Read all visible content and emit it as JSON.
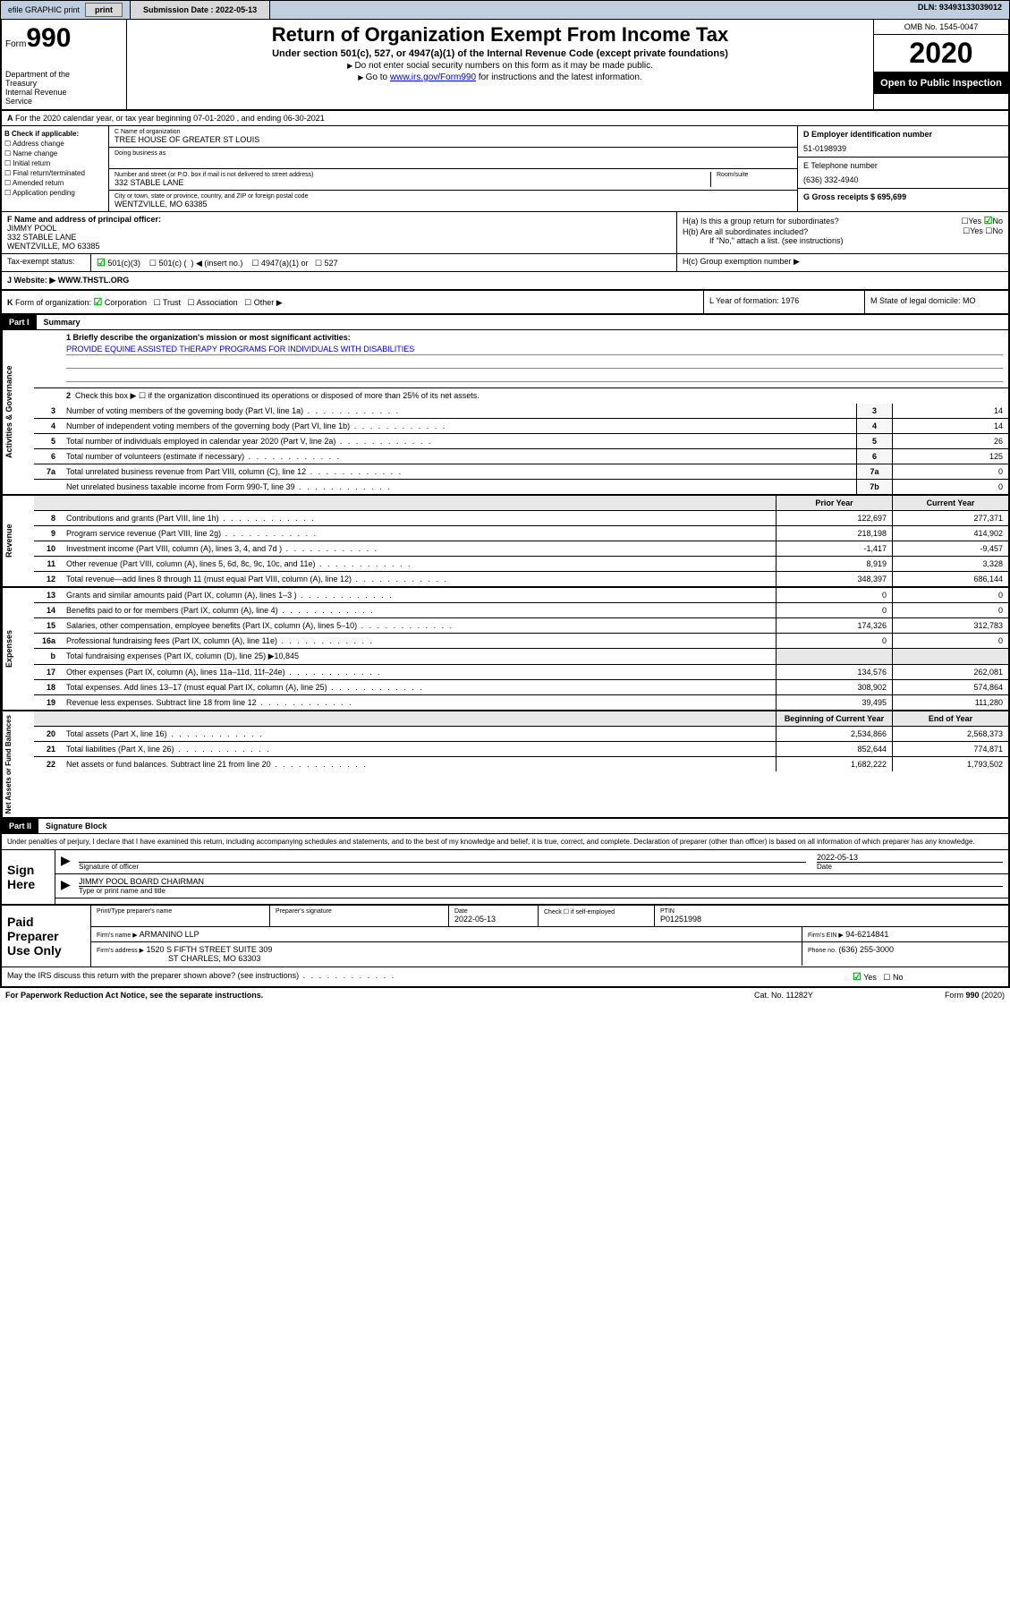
{
  "topbar": {
    "efile": "efile GRAPHIC print",
    "submission_label": "Submission Date : 2022-05-13",
    "dln": "DLN: 93493133039012"
  },
  "header": {
    "form_label": "Form",
    "form_number": "990",
    "dept": "Department of the Treasury\nInternal Revenue Service",
    "title": "Return of Organization Exempt From Income Tax",
    "subtitle": "Under section 501(c), 527, or 4947(a)(1) of the Internal Revenue Code (except private foundations)",
    "note1": "Do not enter social security numbers on this form as it may be made public.",
    "note2_pre": "Go to ",
    "note2_link": "www.irs.gov/Form990",
    "note2_post": " for instructions and the latest information.",
    "omb": "OMB No. 1545-0047",
    "year": "2020",
    "inspect": "Open to Public Inspection"
  },
  "row_a": "For the 2020 calendar year, or tax year beginning 07-01-2020   , and ending 06-30-2021",
  "col_b": {
    "label": "B Check if applicable:",
    "items": [
      "Address change",
      "Name change",
      "Initial return",
      "Final return/terminated",
      "Amended return",
      "Application pending"
    ]
  },
  "col_c": {
    "name_lbl": "C Name of organization",
    "name": "TREE HOUSE OF GREATER ST LOUIS",
    "dba_lbl": "Doing business as",
    "addr_lbl": "Number and street (or P.O. box if mail is not delivered to street address)",
    "room_lbl": "Room/suite",
    "addr": "332 STABLE LANE",
    "city_lbl": "City or town, state or province, country, and ZIP or foreign postal code",
    "city": "WENTZVILLE, MO  63385"
  },
  "col_d": {
    "ein_lbl": "D Employer identification number",
    "ein": "51-0198939",
    "phone_lbl": "E Telephone number",
    "phone": "(636) 332-4940",
    "gross_lbl": "G Gross receipts $ 695,699"
  },
  "col_f": {
    "lbl": "F Name and address of principal officer:",
    "name": "JIMMY POOL",
    "addr1": "332 STABLE LANE",
    "addr2": "WENTZVILLE, MO  63385"
  },
  "col_h": {
    "ha": "H(a)  Is this a group return for subordinates?",
    "hb": "H(b)  Are all subordinates included?",
    "hb_note": "If \"No,\" attach a list. (see instructions)",
    "hc": "H(c)  Group exemption number ▶"
  },
  "tax": {
    "lbl": "Tax-exempt status:",
    "opts": "501(c)(3)       501(c) (  ) ◀ (insert no.)       4947(a)(1) or       527"
  },
  "row_j": {
    "lbl": "J   Website: ▶",
    "val": "  WWW.THSTL.ORG"
  },
  "row_k": {
    "k": "K Form of organization:      Corporation      Trust      Association      Other ▶",
    "l": "L Year of formation: 1976",
    "m": "M State of legal domicile: MO"
  },
  "part1": {
    "hdr": "Part I",
    "title": "Summary",
    "side_ag": "Activities & Governance",
    "side_rev": "Revenue",
    "side_exp": "Expenses",
    "side_na": "Net Assets or Fund Balances",
    "l1_lbl": "1  Briefly describe the organization's mission or most significant activities:",
    "l1_val": "PROVIDE EQUINE ASSISTED THERAPY PROGRAMS FOR INDIVIDUALS WITH DISABILITIES",
    "l2": "Check this box ▶ ☐  if the organization discontinued its operations or disposed of more than 25% of its net assets.",
    "lines_single": [
      {
        "n": "3",
        "t": "Number of voting members of the governing body (Part VI, line 1a)",
        "b": "3",
        "v": "14"
      },
      {
        "n": "4",
        "t": "Number of independent voting members of the governing body (Part VI, line 1b)",
        "b": "4",
        "v": "14"
      },
      {
        "n": "5",
        "t": "Total number of individuals employed in calendar year 2020 (Part V, line 2a)",
        "b": "5",
        "v": "26"
      },
      {
        "n": "6",
        "t": "Total number of volunteers (estimate if necessary)",
        "b": "6",
        "v": "125"
      },
      {
        "n": "7a",
        "t": "Total unrelated business revenue from Part VIII, column (C), line 12",
        "b": "7a",
        "v": "0"
      },
      {
        "n": "",
        "t": "Net unrelated business taxable income from Form 990-T, line 39",
        "b": "7b",
        "v": "0"
      }
    ],
    "hdr_prior": "Prior Year",
    "hdr_curr": "Current Year",
    "rev": [
      {
        "n": "8",
        "t": "Contributions and grants (Part VIII, line 1h)",
        "p": "122,697",
        "c": "277,371"
      },
      {
        "n": "9",
        "t": "Program service revenue (Part VIII, line 2g)",
        "p": "218,198",
        "c": "414,902"
      },
      {
        "n": "10",
        "t": "Investment income (Part VIII, column (A), lines 3, 4, and 7d )",
        "p": "-1,417",
        "c": "-9,457"
      },
      {
        "n": "11",
        "t": "Other revenue (Part VIII, column (A), lines 5, 6d, 8c, 9c, 10c, and 11e)",
        "p": "8,919",
        "c": "3,328"
      },
      {
        "n": "12",
        "t": "Total revenue—add lines 8 through 11 (must equal Part VIII, column (A), line 12)",
        "p": "348,397",
        "c": "686,144"
      }
    ],
    "exp": [
      {
        "n": "13",
        "t": "Grants and similar amounts paid (Part IX, column (A), lines 1–3 )",
        "p": "0",
        "c": "0"
      },
      {
        "n": "14",
        "t": "Benefits paid to or for members (Part IX, column (A), line 4)",
        "p": "0",
        "c": "0"
      },
      {
        "n": "15",
        "t": "Salaries, other compensation, employee benefits (Part IX, column (A), lines 5–10)",
        "p": "174,326",
        "c": "312,783"
      },
      {
        "n": "16a",
        "t": "Professional fundraising fees (Part IX, column (A), line 11e)",
        "p": "0",
        "c": "0"
      },
      {
        "n": "b",
        "t": "Total fundraising expenses (Part IX, column (D), line 25) ▶10,845",
        "p": "",
        "c": ""
      },
      {
        "n": "17",
        "t": "Other expenses (Part IX, column (A), lines 11a–11d, 11f–24e)",
        "p": "134,576",
        "c": "262,081"
      },
      {
        "n": "18",
        "t": "Total expenses. Add lines 13–17 (must equal Part IX, column (A), line 25)",
        "p": "308,902",
        "c": "574,864"
      },
      {
        "n": "19",
        "t": "Revenue less expenses. Subtract line 18 from line 12",
        "p": "39,495",
        "c": "111,280"
      }
    ],
    "hdr_beg": "Beginning of Current Year",
    "hdr_end": "End of Year",
    "na": [
      {
        "n": "20",
        "t": "Total assets (Part X, line 16)",
        "p": "2,534,866",
        "c": "2,568,373"
      },
      {
        "n": "21",
        "t": "Total liabilities (Part X, line 26)",
        "p": "852,644",
        "c": "774,871"
      },
      {
        "n": "22",
        "t": "Net assets or fund balances. Subtract line 21 from line 20",
        "p": "1,682,222",
        "c": "1,793,502"
      }
    ]
  },
  "part2": {
    "hdr": "Part II",
    "title": "Signature Block",
    "penalty": "Under penalties of perjury, I declare that I have examined this return, including accompanying schedules and statements, and to the best of my knowledge and belief, it is true, correct, and complete. Declaration of preparer (other than officer) is based on all information of which preparer has any knowledge.",
    "sign_here": "Sign Here",
    "sig_officer_lbl": "Signature of officer",
    "sig_date": "2022-05-13",
    "date_lbl": "Date",
    "officer": "JIMMY POOL  BOARD CHAIRMAN",
    "officer_lbl": "Type or print name and title",
    "paid": "Paid Preparer Use Only",
    "prep_name_lbl": "Print/Type preparer's name",
    "prep_sig_CONTROL": "Preparer's signature",
    "prep_date_lbl": "Date",
    "prep_date": "2022-05-13",
    "prep_check": "Check ☐ if self-employed",
    "ptin_lbl": "PTIN",
    "ptin": "P01251998",
    "firm_name_lbl": "Firm's name    ▶",
    "firm_name": "ARMANINO LLP",
    "firm_ein_lbl": "Firm's EIN ▶",
    "firm_ein": "94-6214841",
    "firm_addr_lbl": "Firm's address ▶",
    "firm_addr1": "1520 S FIFTH STREET SUITE 309",
    "firm_addr2": "ST CHARLES, MO  63303",
    "firm_phone_lbl": "Phone no.",
    "firm_phone": "(636) 255-3000",
    "discuss": "May the IRS discuss this return with the preparer shown above? (see instructions)"
  },
  "footer": {
    "left": "For Paperwork Reduction Act Notice, see the separate instructions.",
    "mid": "Cat. No. 11282Y",
    "right": "Form 990 (2020)"
  }
}
